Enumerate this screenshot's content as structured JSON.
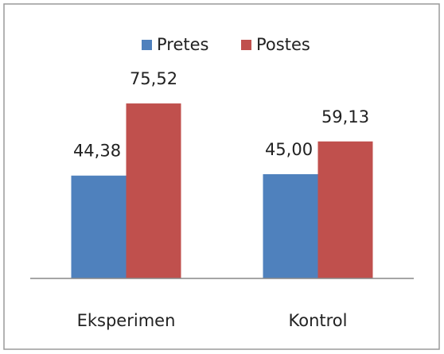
{
  "chart_data": {
    "type": "bar",
    "categories": [
      "Eksperimen",
      "Kontrol"
    ],
    "series": [
      {
        "name": "Pretes",
        "color": "#4f81bd",
        "values": [
          44.38,
          45.0
        ],
        "value_labels": [
          "44,38",
          "45,00"
        ]
      },
      {
        "name": "Postes",
        "color": "#c0504d",
        "values": [
          75.52,
          59.13
        ],
        "value_labels": [
          "75,52",
          "59,13"
        ]
      }
    ],
    "ylim": [
      0,
      80
    ],
    "legend": "top"
  }
}
